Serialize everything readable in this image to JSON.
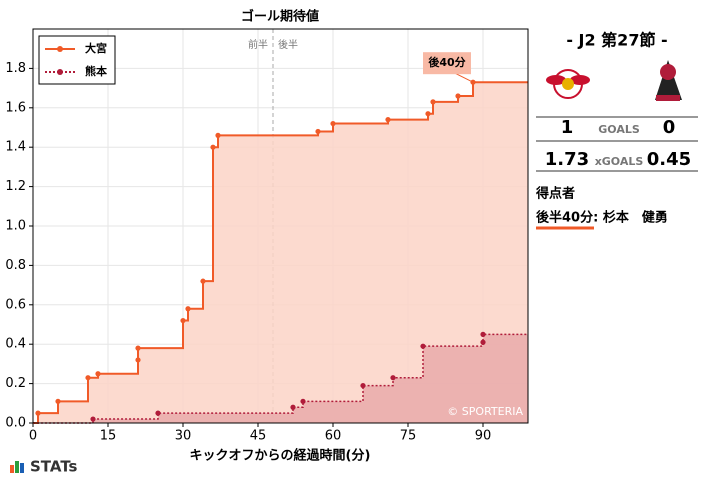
{
  "chart_data": {
    "type": "step",
    "title": "ゴール期待値",
    "x_label": "キックオフからの経過時間(分)",
    "xlim": [
      0,
      99
    ],
    "xticks": [
      0,
      15,
      30,
      45,
      60,
      75,
      90
    ],
    "ylim": [
      0,
      2.0
    ],
    "yticks": [
      {
        "value": 0,
        "label": "0.0"
      },
      0.2,
      0.4,
      0.6,
      0.8,
      {
        "value": 1,
        "label": "1.0"
      },
      1.2,
      1.4,
      1.6,
      1.8
    ],
    "grid": true,
    "legend": "upper left",
    "halftime": {
      "x": 48,
      "first": "前半",
      "second": "後半"
    },
    "annotation": {
      "text": "後40分",
      "x": 88,
      "y": 1.73
    },
    "credit": "© SPORTERIA",
    "series": [
      {
        "name": "大宮",
        "color": "#f05a28",
        "fill": "#fcd3c7",
        "dash": false,
        "x": [
          0,
          1,
          5,
          11,
          13,
          21,
          21,
          30,
          31,
          34,
          36,
          37,
          57,
          60,
          71,
          79,
          80,
          85,
          88,
          99
        ],
        "values": [
          0,
          0.05,
          0.11,
          0.23,
          0.25,
          0.32,
          0.38,
          0.52,
          0.58,
          0.72,
          1.4,
          1.46,
          1.48,
          1.52,
          1.54,
          1.57,
          1.63,
          1.66,
          1.73,
          1.73
        ]
      },
      {
        "name": "熊本",
        "color": "#b01c3a",
        "fill": "#e9aaaa",
        "dash": true,
        "x": [
          0,
          12,
          25,
          52,
          54,
          66,
          72,
          78,
          90,
          90,
          99
        ],
        "values": [
          0,
          0.02,
          0.05,
          0.08,
          0.11,
          0.19,
          0.23,
          0.39,
          0.41,
          0.45,
          0.45
        ]
      }
    ]
  },
  "panel": {
    "match": "- J2 第27節 -",
    "home_goals": "1",
    "goals_label": "GOALS",
    "away_goals": "0",
    "home_xg": "1.73",
    "xg_label": "xGOALS",
    "away_xg": "0.45",
    "scorers_title": "得点者",
    "scorer": "後半40分: 杉本　健勇"
  },
  "footer": {
    "logo": "STATs"
  }
}
